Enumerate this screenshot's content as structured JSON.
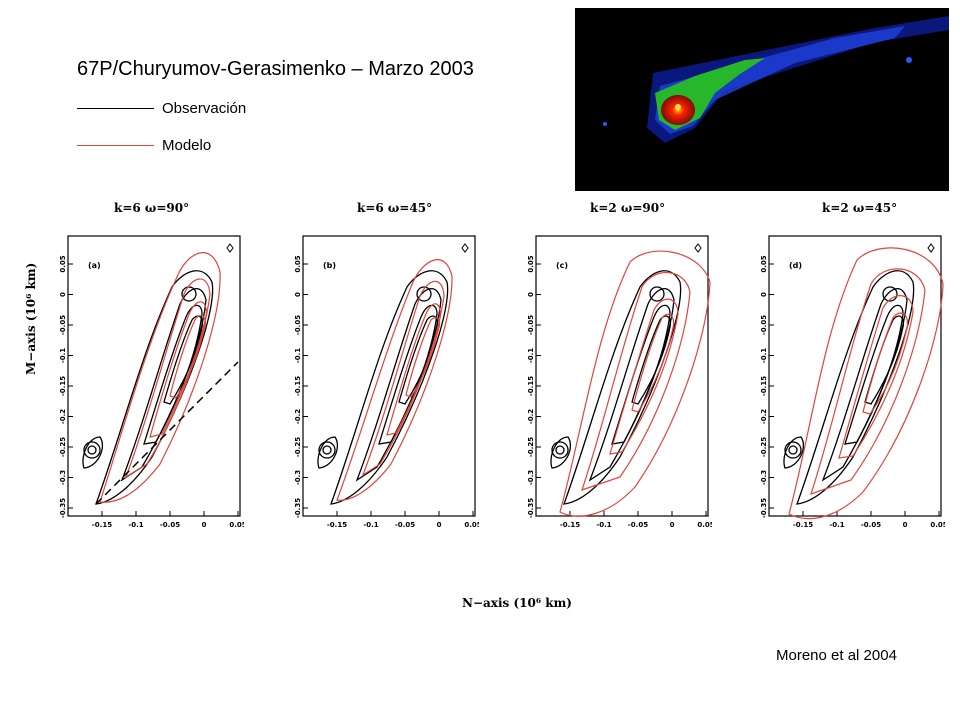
{
  "title": "67P/Churyumov-Gerasimenko – Marzo 2003",
  "legend": [
    {
      "label": "Observación",
      "color": "#000000"
    },
    {
      "label": "Modelo",
      "color": "#e0453a"
    }
  ],
  "panels": [
    {
      "heading": "k=6   ω=90°",
      "tag": "(a)"
    },
    {
      "heading": "k=6   ω=45°",
      "tag": "(b)"
    },
    {
      "heading": "k=2   ω=90°",
      "tag": "(c)"
    },
    {
      "heading": "k=2   ω=45°",
      "tag": "(d)"
    }
  ],
  "axes": {
    "ylabel": "M−axis (10⁶ km)",
    "xlabel": "N−axis (10⁶ km)",
    "y_ticks": [
      "0.05",
      "0",
      "-0.05",
      "-0.1",
      "-0.15",
      "-0.2",
      "-0.25",
      "-0.3",
      "-0.35"
    ],
    "x_ticks": [
      "-0.15",
      "-0.1",
      "-0.05",
      "0",
      "0.05"
    ]
  },
  "credit": "Moreno et al 2004",
  "colors": {
    "observation": "#000000",
    "model": "#e0453a",
    "image_bg": "#000000"
  }
}
